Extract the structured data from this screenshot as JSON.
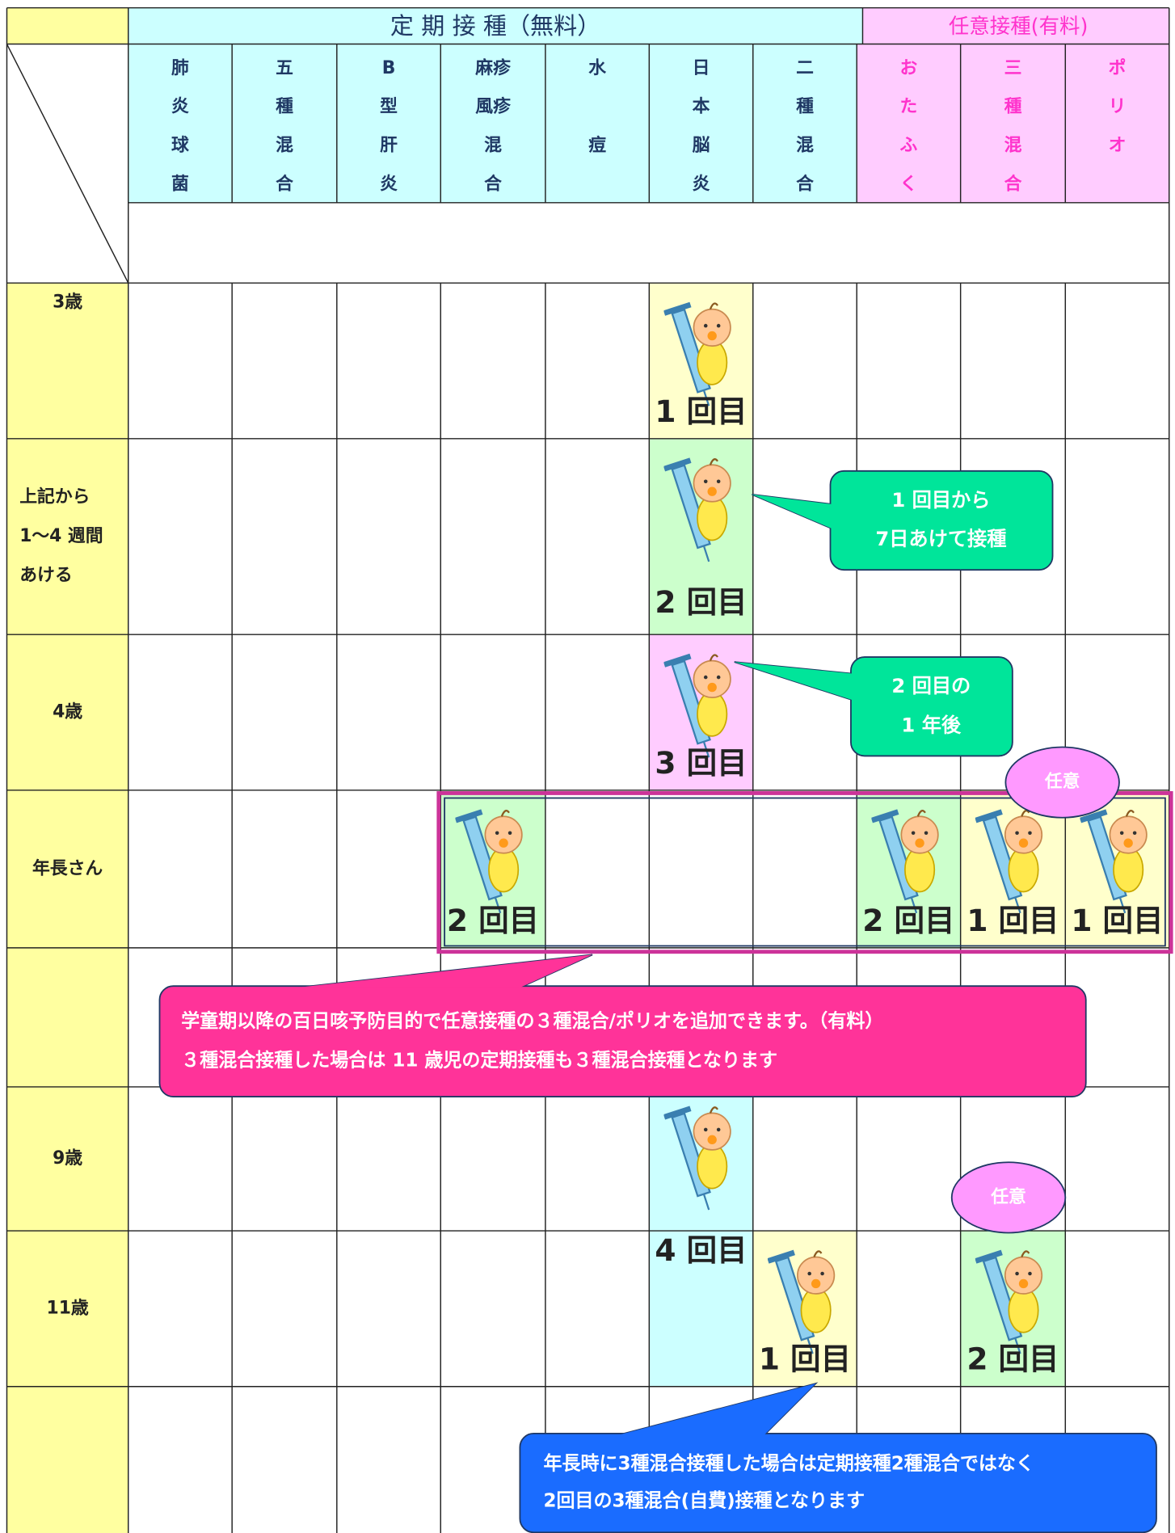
{
  "header": {
    "regular": "定 期 接 種（無料）",
    "optional": "任意接種(有料)"
  },
  "columns": [
    {
      "lines": [
        "肺",
        "炎",
        "球",
        "菌"
      ],
      "kind": "regular"
    },
    {
      "lines": [
        "五",
        "種",
        "混",
        "合"
      ],
      "kind": "regular"
    },
    {
      "lines": [
        "B",
        "型",
        "肝",
        "炎"
      ],
      "kind": "regular"
    },
    {
      "lines": [
        "麻疹",
        "風疹",
        "混",
        "合"
      ],
      "kind": "regular"
    },
    {
      "lines": [
        "水",
        "痘"
      ],
      "kind": "regular"
    },
    {
      "lines": [
        "日",
        "本",
        "脳",
        "炎"
      ],
      "kind": "regular"
    },
    {
      "lines": [
        "二",
        "種",
        "混",
        "合"
      ],
      "kind": "regular"
    },
    {
      "lines": [
        "お",
        "た",
        "ふ",
        "く"
      ],
      "kind": "optional"
    },
    {
      "lines": [
        "三",
        "種",
        "混",
        "合"
      ],
      "kind": "optional"
    },
    {
      "lines": [
        "ポ",
        "リ",
        "オ"
      ],
      "kind": "optional"
    }
  ],
  "rows": [
    {
      "label": [
        "3歳"
      ]
    },
    {
      "label": [
        "上記から",
        "1～4 週間",
        "あける"
      ]
    },
    {
      "label": [
        "4歳"
      ]
    },
    {
      "label": [
        "年長さん"
      ]
    },
    {},
    {
      "label": [
        "9歳"
      ]
    },
    {
      "label": [
        "11歳"
      ]
    },
    {}
  ],
  "doses": [
    {
      "row": 0,
      "col": 5,
      "span": 1,
      "label": "1 回目",
      "color": "#ffffcc"
    },
    {
      "row": 1,
      "col": 5,
      "span": 1,
      "label": "2 回目",
      "color": "#ccffcc"
    },
    {
      "row": 2,
      "col": 5,
      "span": 1,
      "label": "3 回目",
      "color": "#ffccff"
    },
    {
      "row": 3,
      "col": 3,
      "span": 1,
      "label": "2 回目",
      "color": "#ccffcc"
    },
    {
      "row": 3,
      "col": 7,
      "span": 1,
      "label": "2 回目",
      "color": "#ccffcc"
    },
    {
      "row": 3,
      "col": 8,
      "span": 1,
      "label": "1 回目",
      "color": "#ffffcc"
    },
    {
      "row": 3,
      "col": 9,
      "span": 1,
      "label": "1 回目",
      "color": "#ffffcc"
    },
    {
      "row": 5,
      "col": 5,
      "span": 2,
      "label": "4 回目",
      "color": "#ccffff"
    },
    {
      "row": 6,
      "col": 6,
      "span": 1,
      "label": "1 回目",
      "color": "#ffffcc"
    },
    {
      "row": 6,
      "col": 8,
      "span": 1,
      "label": "2 回目",
      "color": "#ccffcc"
    }
  ],
  "badges": [
    {
      "text": "任意"
    },
    {
      "text": "任意"
    }
  ],
  "callouts": [
    {
      "lines": [
        "1 回目から",
        "7日あけて接種"
      ]
    },
    {
      "lines": [
        "2 回目の",
        "1 年後"
      ]
    },
    {
      "lines": [
        "学童期以降の百日咳予防目的で任意接種の３種混合/ポリオを追加できます。（有料）",
        "３種混合接種した場合は 11 歳児の定期接種も３種混合接種となります"
      ]
    },
    {
      "lines": [
        "年長時に3種混合接種した場合は定期接種2種混合ではなく",
        "2回目の3種混合(自費)接種となります"
      ]
    }
  ]
}
